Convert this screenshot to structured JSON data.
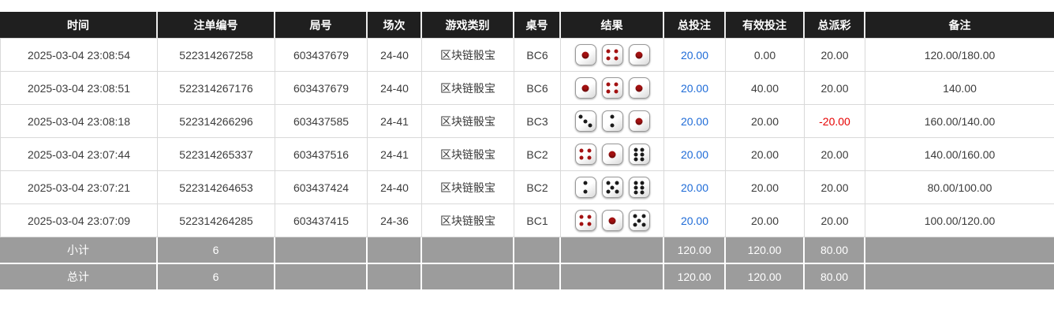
{
  "colors": {
    "header_bg": "#1f1f1f",
    "footer_bg": "#9c9c9c",
    "link_blue": "#1e6bd7",
    "negative_red": "#e60000"
  },
  "table": {
    "columns": [
      {
        "label": "时间"
      },
      {
        "label": "注单编号"
      },
      {
        "label": "局号"
      },
      {
        "label": "场次"
      },
      {
        "label": "游戏类别"
      },
      {
        "label": "桌号"
      },
      {
        "label": "结果"
      },
      {
        "label": "总投注"
      },
      {
        "label": "有效投注"
      },
      {
        "label": "总派彩"
      },
      {
        "label": "备注"
      }
    ],
    "rows": [
      {
        "time": "2025-03-04 23:08:54",
        "bet_id": "522314267258",
        "round_id": "603437679",
        "session": "24-40",
        "game_type": "区块链骰宝",
        "table_id": "BC6",
        "dice": [
          1,
          4,
          1
        ],
        "total_bet": "20.00",
        "valid_bet": "0.00",
        "total_payout": "20.00",
        "remark": "120.00/180.00"
      },
      {
        "time": "2025-03-04 23:08:51",
        "bet_id": "522314267176",
        "round_id": "603437679",
        "session": "24-40",
        "game_type": "区块链骰宝",
        "table_id": "BC6",
        "dice": [
          1,
          4,
          1
        ],
        "total_bet": "20.00",
        "valid_bet": "40.00",
        "total_payout": "20.00",
        "remark": "140.00"
      },
      {
        "time": "2025-03-04 23:08:18",
        "bet_id": "522314266296",
        "round_id": "603437585",
        "session": "24-41",
        "game_type": "区块链骰宝",
        "table_id": "BC3",
        "dice": [
          3,
          2,
          1
        ],
        "total_bet": "20.00",
        "valid_bet": "20.00",
        "total_payout": "-20.00",
        "remark": "160.00/140.00"
      },
      {
        "time": "2025-03-04 23:07:44",
        "bet_id": "522314265337",
        "round_id": "603437516",
        "session": "24-41",
        "game_type": "区块链骰宝",
        "table_id": "BC2",
        "dice": [
          4,
          1,
          6
        ],
        "total_bet": "20.00",
        "valid_bet": "20.00",
        "total_payout": "20.00",
        "remark": "140.00/160.00"
      },
      {
        "time": "2025-03-04 23:07:21",
        "bet_id": "522314264653",
        "round_id": "603437424",
        "session": "24-40",
        "game_type": "区块链骰宝",
        "table_id": "BC2",
        "dice": [
          2,
          5,
          6
        ],
        "total_bet": "20.00",
        "valid_bet": "20.00",
        "total_payout": "20.00",
        "remark": "80.00/100.00"
      },
      {
        "time": "2025-03-04 23:07:09",
        "bet_id": "522314264285",
        "round_id": "603437415",
        "session": "24-36",
        "game_type": "区块链骰宝",
        "table_id": "BC1",
        "dice": [
          4,
          1,
          5
        ],
        "total_bet": "20.00",
        "valid_bet": "20.00",
        "total_payout": "20.00",
        "remark": "100.00/120.00"
      }
    ],
    "footer": [
      {
        "label": "小计",
        "count": "6",
        "total_bet": "120.00",
        "valid_bet": "120.00",
        "total_payout": "80.00"
      },
      {
        "label": "总计",
        "count": "6",
        "total_bet": "120.00",
        "valid_bet": "120.00",
        "total_payout": "80.00"
      }
    ]
  }
}
